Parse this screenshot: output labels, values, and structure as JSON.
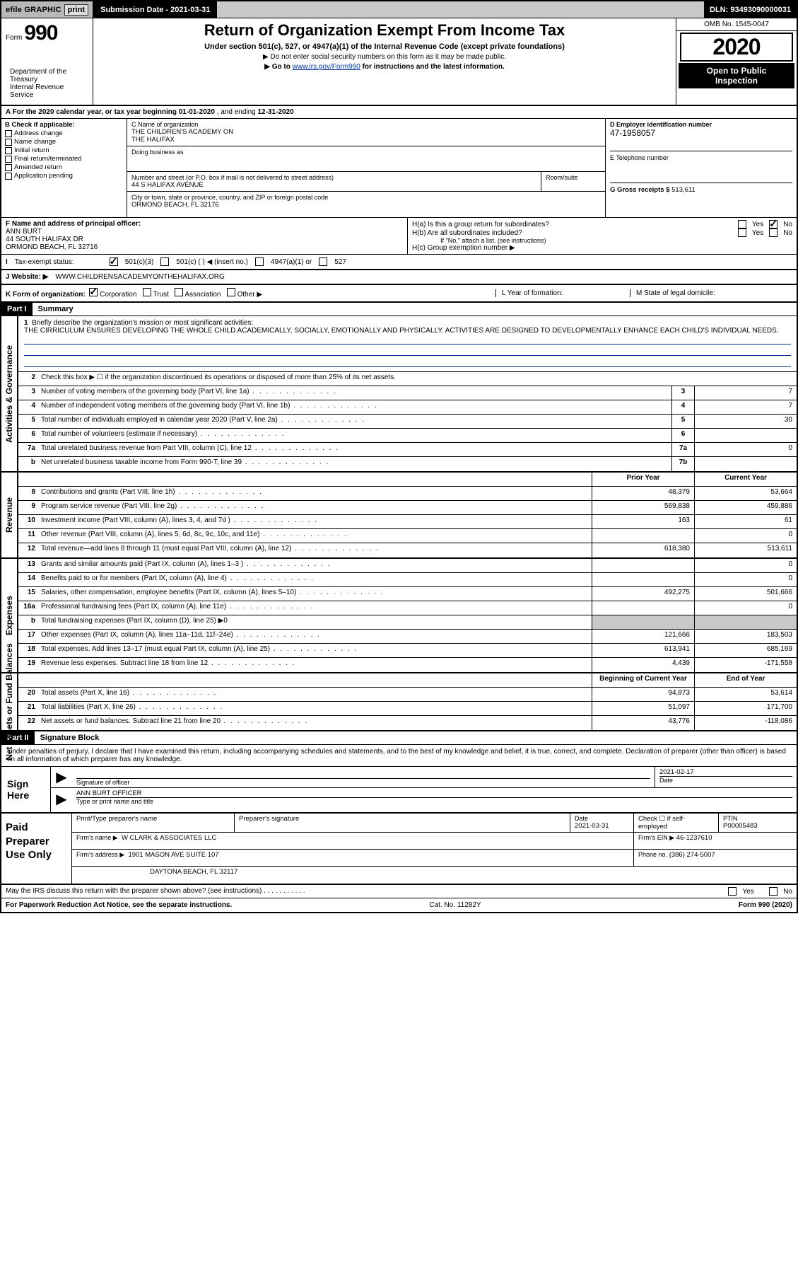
{
  "topbar": {
    "efile": "efile GRAPHIC",
    "print": "print",
    "submission_label": "Submission Date - 2021-03-31",
    "dln": "DLN: 93493090000031"
  },
  "header": {
    "form_prefix": "Form",
    "form_number": "990",
    "dept1": "Department of the Treasury",
    "dept2": "Internal Revenue Service",
    "title": "Return of Organization Exempt From Income Tax",
    "subtitle": "Under section 501(c), 527, or 4947(a)(1) of the Internal Revenue Code (except private foundations)",
    "note1": "▶ Do not enter social security numbers on this form as it may be made public.",
    "note2_pre": "▶ Go to ",
    "note2_link": "www.irs.gov/Form990",
    "note2_post": " for instructions and the latest information.",
    "omb": "OMB No. 1545-0047",
    "year": "2020",
    "inspect1": "Open to Public",
    "inspect2": "Inspection"
  },
  "rowA": {
    "text_pre": "A For the 2020 calendar year, or tax year beginning ",
    "begin": "01-01-2020",
    "mid": "  , and ending ",
    "end": "12-31-2020"
  },
  "colB": {
    "label": "B Check if applicable:",
    "items": [
      "Address change",
      "Name change",
      "Initial return",
      "Final return/terminated",
      "Amended return",
      "Application pending"
    ]
  },
  "colC": {
    "name_label": "C Name of organization",
    "name1": "THE CHILDREN'S ACADEMY ON",
    "name2": "THE HALIFAX",
    "dba_label": "Doing business as",
    "addr_label": "Number and street (or P.O. box if mail is not delivered to street address)",
    "room_label": "Room/suite",
    "addr": "44 S HALIFAX AVENUE",
    "city_label": "City or town, state or province, country, and ZIP or foreign postal code",
    "city": "ORMOND BEACH, FL  32176"
  },
  "colD": {
    "ein_label": "D Employer identification number",
    "ein": "47-1958057",
    "phone_label": "E Telephone number",
    "gross_label": "G Gross receipts $ ",
    "gross": "513,611"
  },
  "rowF": {
    "label": "F  Name and address of principal officer:",
    "name": "ANN BURT",
    "addr1": "44 SOUTH HALIFAX DR",
    "addr2": "ORMOND BEACH, FL  32716"
  },
  "rowH": {
    "ha": "H(a)  Is this a group return for subordinates?",
    "hb": "H(b)  Are all subordinates included?",
    "hb_note": "If \"No,\" attach a list. (see instructions)",
    "hc": "H(c)  Group exemption number ▶",
    "yes": "Yes",
    "no": "No"
  },
  "rowI": {
    "label": "Tax-exempt status:",
    "o1": "501(c)(3)",
    "o2": "501(c) (   ) ◀ (insert no.)",
    "o3": "4947(a)(1) or",
    "o4": "527"
  },
  "rowJ": {
    "label": "J   Website: ▶",
    "url": "WWW.CHILDRENSACADEMYONTHEHALIFAX.ORG"
  },
  "rowK": {
    "label": "K Form of organization:",
    "o1": "Corporation",
    "o2": "Trust",
    "o3": "Association",
    "o4": "Other ▶",
    "L": "L Year of formation:",
    "M": "M State of legal domicile:"
  },
  "part1": {
    "label": "Part I",
    "title": "Summary"
  },
  "mission": {
    "num": "1",
    "label": "Briefly describe the organization's mission or most significant activities:",
    "text": "THE CIRRICULUM ENSURES DEVELOPING THE WHOLE CHILD ACADEMICALLY, SOCIALLY, EMOTIONALLY AND PHYSICALLY. ACTIVITIES ARE DESIGNED TO DEVELOPMENTALLY ENHANCE EACH CHILD'S INDIVIDUAL NEEDS."
  },
  "activities": {
    "side": "Activities & Governance",
    "l2": "Check this box ▶ ☐  if the organization discontinued its operations or disposed of more than 25% of its net assets.",
    "rows": [
      {
        "n": "3",
        "d": "Number of voting members of the governing body (Part VI, line 1a)",
        "box": "3",
        "v": "7"
      },
      {
        "n": "4",
        "d": "Number of independent voting members of the governing body (Part VI, line 1b)",
        "box": "4",
        "v": "7"
      },
      {
        "n": "5",
        "d": "Total number of individuals employed in calendar year 2020 (Part V, line 2a)",
        "box": "5",
        "v": "30"
      },
      {
        "n": "6",
        "d": "Total number of volunteers (estimate if necessary)",
        "box": "6",
        "v": ""
      },
      {
        "n": "7a",
        "d": "Total unrelated business revenue from Part VIII, column (C), line 12",
        "box": "7a",
        "v": "0"
      },
      {
        "n": "b",
        "d": "Net unrelated business taxable income from Form 990-T, line 39",
        "box": "7b",
        "v": ""
      }
    ]
  },
  "revenue": {
    "side": "Revenue",
    "head_prior": "Prior Year",
    "head_curr": "Current Year",
    "rows": [
      {
        "n": "8",
        "d": "Contributions and grants (Part VIII, line 1h)",
        "p": "48,379",
        "c": "53,664"
      },
      {
        "n": "9",
        "d": "Program service revenue (Part VIII, line 2g)",
        "p": "569,838",
        "c": "459,886"
      },
      {
        "n": "10",
        "d": "Investment income (Part VIII, column (A), lines 3, 4, and 7d )",
        "p": "163",
        "c": "61"
      },
      {
        "n": "11",
        "d": "Other revenue (Part VIII, column (A), lines 5, 6d, 8c, 9c, 10c, and 11e)",
        "p": "",
        "c": "0"
      },
      {
        "n": "12",
        "d": "Total revenue—add lines 8 through 11 (must equal Part VIII, column (A), line 12)",
        "p": "618,380",
        "c": "513,611"
      }
    ]
  },
  "expenses": {
    "side": "Expenses",
    "rows": [
      {
        "n": "13",
        "d": "Grants and similar amounts paid (Part IX, column (A), lines 1–3 )",
        "p": "",
        "c": "0"
      },
      {
        "n": "14",
        "d": "Benefits paid to or for members (Part IX, column (A), line 4)",
        "p": "",
        "c": "0"
      },
      {
        "n": "15",
        "d": "Salaries, other compensation, employee benefits (Part IX, column (A), lines 5–10)",
        "p": "492,275",
        "c": "501,666"
      },
      {
        "n": "16a",
        "d": "Professional fundraising fees (Part IX, column (A), line 11e)",
        "p": "",
        "c": "0"
      },
      {
        "n": "b",
        "d": "Total fundraising expenses (Part IX, column (D), line 25) ▶0",
        "p": "GRAY",
        "c": "GRAY"
      },
      {
        "n": "17",
        "d": "Other expenses (Part IX, column (A), lines 11a–11d, 11f–24e)",
        "p": "121,666",
        "c": "183,503"
      },
      {
        "n": "18",
        "d": "Total expenses. Add lines 13–17 (must equal Part IX, column (A), line 25)",
        "p": "613,941",
        "c": "685,169"
      },
      {
        "n": "19",
        "d": "Revenue less expenses. Subtract line 18 from line 12",
        "p": "4,439",
        "c": "-171,558"
      }
    ]
  },
  "netassets": {
    "side": "Net Assets or Fund Balances",
    "head_prior": "Beginning of Current Year",
    "head_curr": "End of Year",
    "rows": [
      {
        "n": "20",
        "d": "Total assets (Part X, line 16)",
        "p": "94,873",
        "c": "53,614"
      },
      {
        "n": "21",
        "d": "Total liabilities (Part X, line 26)",
        "p": "51,097",
        "c": "171,700"
      },
      {
        "n": "22",
        "d": "Net assets or fund balances. Subtract line 21 from line 20",
        "p": "43,776",
        "c": "-118,086"
      }
    ]
  },
  "part2": {
    "label": "Part II",
    "title": "Signature Block",
    "intro": "Under penalties of perjury, I declare that I have examined this return, including accompanying schedules and statements, and to the best of my knowledge and belief, it is true, correct, and complete. Declaration of preparer (other than officer) is based on all information of which preparer has any knowledge."
  },
  "sign": {
    "left": "Sign Here",
    "sig_label": "Signature of officer",
    "date_label": "Date",
    "date": "2021-02-17",
    "name": "ANN BURT  OFFICER",
    "name_label": "Type or print name and title"
  },
  "prep": {
    "left": "Paid Preparer Use Only",
    "r1": {
      "a": "Print/Type preparer's name",
      "b": "Preparer's signature",
      "c": "Date",
      "cv": "2021-03-31",
      "d": "Check ☐ if self-employed",
      "e": "PTIN",
      "ev": "P00005483"
    },
    "r2": {
      "a": "Firm's name      ▶",
      "av": "W CLARK & ASSOCIATES LLC",
      "b": "Firm's EIN ▶",
      "bv": "46-1237610"
    },
    "r3": {
      "a": "Firm's address ▶",
      "av": "1901 MASON AVE SUITE 107",
      "b": "Phone no.",
      "bv": "(386) 274-5007"
    },
    "r3b": "DAYTONA BEACH, FL  32117"
  },
  "discuss": {
    "text": "May the IRS discuss this return with the preparer shown above? (see instructions)",
    "yes": "Yes",
    "no": "No"
  },
  "footer": {
    "left": "For Paperwork Reduction Act Notice, see the separate instructions.",
    "mid": "Cat. No. 11282Y",
    "right_pre": "Form ",
    "right_form": "990",
    "right_post": " (2020)"
  }
}
